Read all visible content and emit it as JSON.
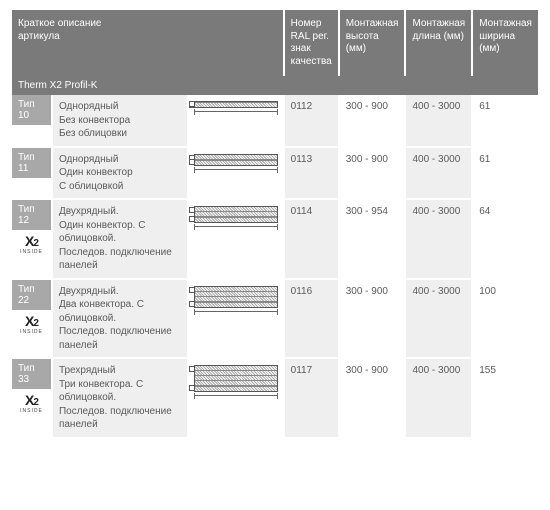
{
  "header": {
    "col_desc": "Краткое описание\nартикула",
    "col_ral": "Номер RAL рег. знак качества",
    "col_h": "Монтажная высота (мм)",
    "col_l": "Монтажная длина (мм)",
    "col_w": "Монтажная ширина (мм)"
  },
  "section": "Therm X2 Profil-K",
  "rows": [
    {
      "type": "Тип 10",
      "badge": false,
      "desc": "Однорядный\nБез конвектора\nБез облицовки",
      "layers": 1,
      "ral": "0112",
      "h": "300 - 900",
      "l": "400 - 3000",
      "w": "61"
    },
    {
      "type": "Тип 11",
      "badge": false,
      "desc": "Однорядный\nОдин конвектор\nС облицовкой",
      "layers": 2,
      "ral": "0113",
      "h": "300 - 900",
      "l": "400 - 3000",
      "w": "61"
    },
    {
      "type": "Тип 12",
      "badge": true,
      "desc": "Двухрядный.\nОдин конвектор. С облицовкой.\nПоследов. подключение панелей",
      "layers": 3,
      "ral": "0114",
      "h": "300 - 954",
      "l": "400 - 3000",
      "w": "64"
    },
    {
      "type": "Тип 22",
      "badge": true,
      "desc": "Двухрядный.\nДва конвектора. С облицовкой.\nПоследов. подключение панелей",
      "layers": 4,
      "ral": "0116",
      "h": "300 - 900",
      "l": "400 - 3000",
      "w": "100"
    },
    {
      "type": "Тип 33",
      "badge": true,
      "desc": "Трехрядный\nТри конвектора. С облицовкой.\nПоследов. подключение панелей",
      "layers": 5,
      "ral": "0117",
      "h": "300 - 900",
      "l": "400 - 3000",
      "w": "155"
    }
  ],
  "badge": {
    "main": "X2",
    "sub": "INSIDE"
  },
  "colors": {
    "header_bg": "#7a7a7a",
    "type_bg": "#a8a8a8",
    "stripe": "#efefef",
    "text": "#5a5a5a"
  }
}
